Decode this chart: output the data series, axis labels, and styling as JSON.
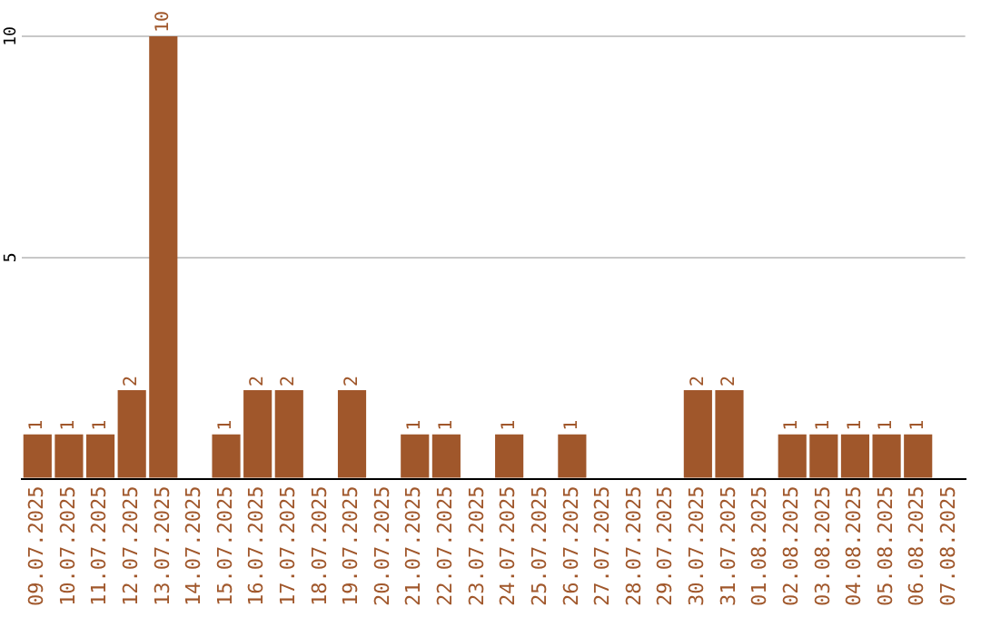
{
  "chart_data": {
    "type": "bar",
    "categories": [
      "09.07.2025",
      "10.07.2025",
      "11.07.2025",
      "12.07.2025",
      "13.07.2025",
      "14.07.2025",
      "15.07.2025",
      "16.07.2025",
      "17.07.2025",
      "18.07.2025",
      "19.07.2025",
      "20.07.2025",
      "21.07.2025",
      "22.07.2025",
      "23.07.2025",
      "24.07.2025",
      "25.07.2025",
      "26.07.2025",
      "27.07.2025",
      "28.07.2025",
      "29.07.2025",
      "30.07.2025",
      "31.07.2025",
      "01.08.2025",
      "02.08.2025",
      "03.08.2025",
      "04.08.2025",
      "05.08.2025",
      "06.08.2025",
      "07.08.2025"
    ],
    "values": [
      1,
      1,
      1,
      2,
      10,
      0,
      1,
      2,
      2,
      0,
      2,
      0,
      1,
      1,
      0,
      1,
      0,
      1,
      0,
      0,
      0,
      2,
      2,
      0,
      1,
      1,
      1,
      1,
      1,
      0
    ],
    "value_labels": [
      "1",
      "1",
      "1",
      "2",
      "10",
      null,
      "1",
      "2",
      "2",
      null,
      "2",
      null,
      "1",
      "1",
      null,
      "1",
      null,
      "1",
      null,
      null,
      null,
      "2",
      "2",
      null,
      "1",
      "1",
      "1",
      "1",
      "1",
      null
    ],
    "color": "#a0572b",
    "ylim": [
      0,
      10
    ],
    "yticks": [
      {
        "value": 0,
        "label": null
      },
      5,
      10
    ],
    "grid": "y"
  }
}
